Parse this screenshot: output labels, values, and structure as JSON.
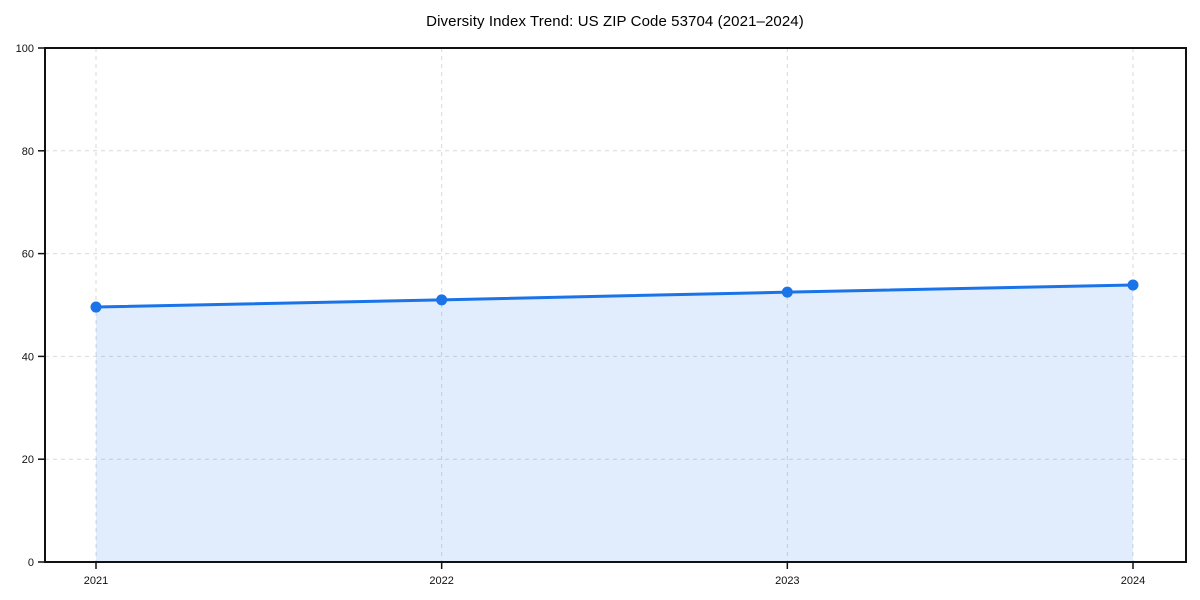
{
  "figure": {
    "background": "#ffffff"
  },
  "chart_data": {
    "type": "area",
    "title": "Diversity Index Trend: US ZIP Code 53704 (2021–2024)",
    "categories": [
      "2021",
      "2022",
      "2023",
      "2024"
    ],
    "series": [
      {
        "name": "Diversity Index",
        "values": [
          49.6,
          51.0,
          52.5,
          53.9
        ]
      }
    ],
    "xlabel": "",
    "ylabel": "",
    "ylim": [
      0,
      100
    ],
    "yticks": [
      0,
      20,
      40,
      60,
      80,
      100
    ],
    "grid": true,
    "grid_style": "dashed",
    "legend": false,
    "marker": "circle",
    "colors": {
      "line": "#1a73e8",
      "marker": "#1a73e8",
      "fill": "#1a73e8",
      "fill_opacity": 0.13,
      "grid": "#d9d9d9",
      "axis": "#111111",
      "tick_text": "#111111",
      "title_text": "#000000"
    }
  }
}
